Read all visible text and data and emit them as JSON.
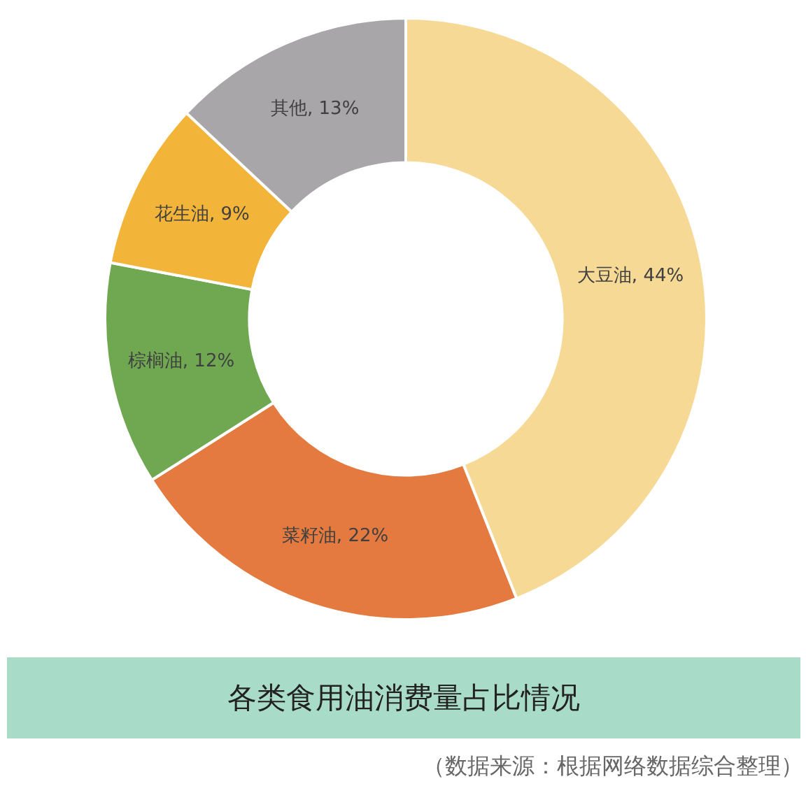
{
  "chart_data": {
    "type": "donut",
    "title": "各类食用油消费量占比情况",
    "categories": [
      "大豆油",
      "菜籽油",
      "棕榈油",
      "花生油",
      "其他"
    ],
    "values": [
      44,
      22,
      12,
      9,
      13
    ],
    "colors": [
      "#f5d995",
      "#e47a3f",
      "#70a852",
      "#f3b43a",
      "#a8a6a8"
    ],
    "value_labels": [
      ", 44%",
      ", 22%",
      ", 12%",
      ", 9%",
      ", 13%"
    ],
    "annotations": [
      "（数据来源：根据网络数据综合整理）"
    ],
    "legend": false
  }
}
